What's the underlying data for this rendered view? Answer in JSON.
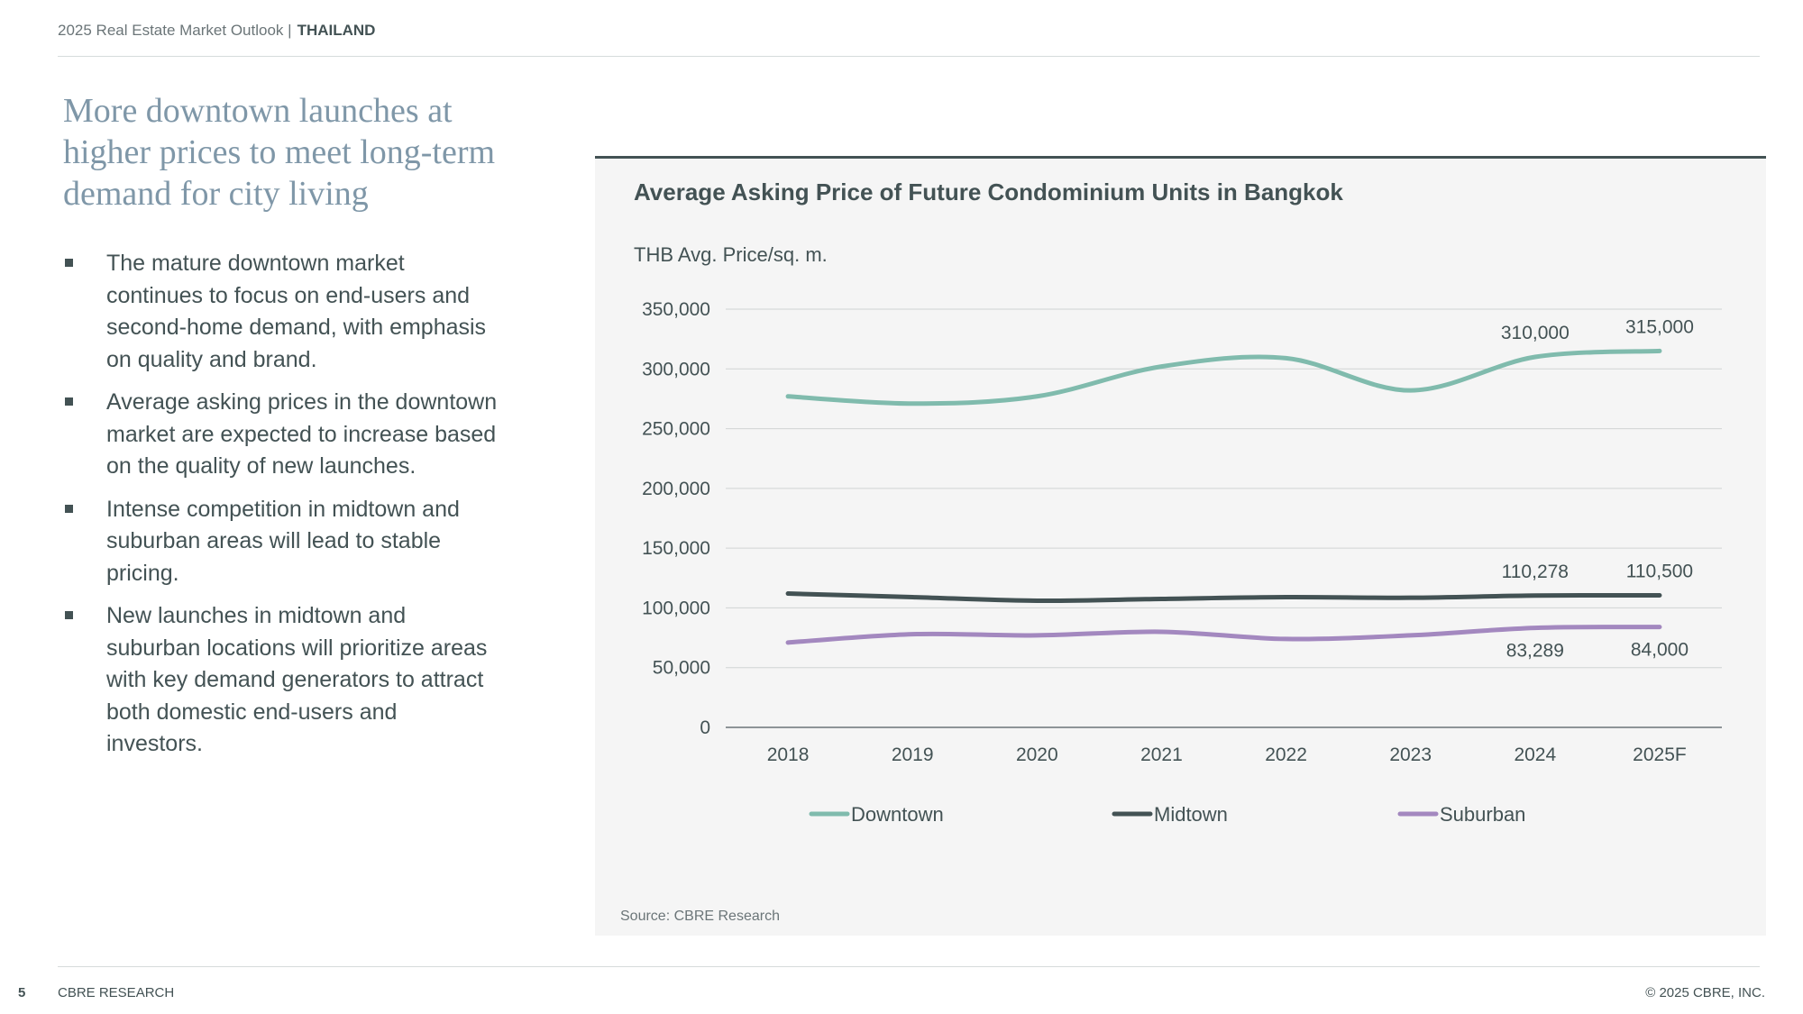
{
  "header": {
    "report": "2025 Real Estate Market Outlook |",
    "country": "THAILAND"
  },
  "headline": "More downtown launches at higher prices to meet long-term demand for city living",
  "bullets": [
    "The mature downtown market continues to focus on end-users and second-home demand, with emphasis on quality and brand.",
    "Average asking prices in the downtown market are expected to increase based on the quality of new launches.",
    "Intense competition in midtown and suburban areas will lead to stable pricing.",
    "New launches in midtown and suburban locations will prioritize areas with key demand generators to attract both domestic end-users and investors."
  ],
  "chart_data": {
    "type": "line",
    "title": "Average Asking Price of Future Condominium Units in Bangkok",
    "ylabel": "THB Avg. Price/sq. m.",
    "categories": [
      "2018",
      "2019",
      "2020",
      "2021",
      "2022",
      "2023",
      "2024",
      "2025F"
    ],
    "ylim": [
      0,
      350000
    ],
    "yticks": [
      0,
      50000,
      100000,
      150000,
      200000,
      250000,
      300000,
      350000
    ],
    "ytick_labels": [
      "0",
      "50,000",
      "100,000",
      "150,000",
      "200,000",
      "250,000",
      "300,000",
      "350,000"
    ],
    "grid": true,
    "legend_position": "bottom",
    "series": [
      {
        "name": "Downtown",
        "color": "#80bbad",
        "values": [
          277000,
          271000,
          277000,
          302000,
          309000,
          282000,
          310000,
          315000
        ],
        "labels": [
          "",
          "",
          "",
          "",
          "",
          "",
          "310,000",
          "315,000"
        ],
        "label_position": "above"
      },
      {
        "name": "Midtown",
        "color": "#435254",
        "values": [
          112000,
          109000,
          106000,
          107500,
          109000,
          108500,
          110278,
          110500
        ],
        "labels": [
          "",
          "",
          "",
          "",
          "",
          "",
          "110,278",
          "110,500"
        ],
        "label_position": "above"
      },
      {
        "name": "Suburban",
        "color": "#a388bf",
        "values": [
          71000,
          78000,
          77000,
          80000,
          74000,
          77000,
          83289,
          84000
        ],
        "labels": [
          "",
          "",
          "",
          "",
          "",
          "",
          "83,289",
          "84,000"
        ],
        "label_position": "below"
      }
    ],
    "source": "Source: CBRE Research"
  },
  "footer": {
    "page": "5",
    "org": "CBRE RESEARCH",
    "copyright": "© 2025 CBRE, INC."
  }
}
